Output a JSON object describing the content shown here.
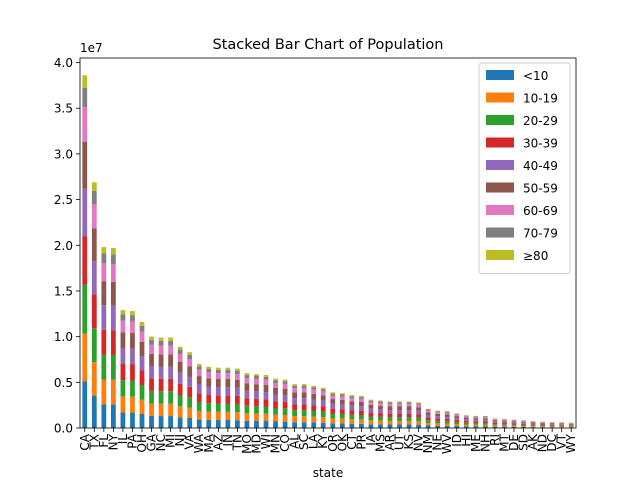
{
  "chart_data": {
    "type": "bar",
    "stacked": true,
    "title": "Stacked Bar Chart of Population",
    "xlabel": "state",
    "ylabel": "",
    "offset_label": "1e7",
    "ylim": [
      0,
      40500000
    ],
    "yticks": [
      0,
      5000000,
      10000000,
      15000000,
      20000000,
      25000000,
      30000000,
      35000000,
      40000000
    ],
    "ytick_labels": [
      "0.0",
      "0.5",
      "1.0",
      "1.5",
      "2.0",
      "2.5",
      "3.0",
      "3.5",
      "4.0"
    ],
    "legend_position": "top-right",
    "categories": [
      "CA",
      "TX",
      "FL",
      "NY",
      "IL",
      "PA",
      "OH",
      "GA",
      "NC",
      "MI",
      "NJ",
      "VA",
      "WA",
      "MA",
      "AZ",
      "IN",
      "TN",
      "MO",
      "MD",
      "WI",
      "MN",
      "CO",
      "AL",
      "SC",
      "LA",
      "KY",
      "OR",
      "OK",
      "CT",
      "PR",
      "IA",
      "MS",
      "AR",
      "UT",
      "KS",
      "NV",
      "NM",
      "NE",
      "WV",
      "ID",
      "HI",
      "ME",
      "NH",
      "RI",
      "MT",
      "DE",
      "SD",
      "AK",
      "ND",
      "DC",
      "VT",
      "WY"
    ],
    "totals": [
      38600000,
      26900000,
      19800000,
      19700000,
      12900000,
      12800000,
      11600000,
      10000000,
      9900000,
      9900000,
      8900000,
      8300000,
      7000000,
      6700000,
      6600000,
      6600000,
      6500000,
      6000000,
      5900000,
      5800000,
      5400000,
      5300000,
      4800000,
      4800000,
      4600000,
      4400000,
      3900000,
      3800000,
      3600000,
      3500000,
      3100000,
      3000000,
      2900000,
      2900000,
      2900000,
      2800000,
      2100000,
      1900000,
      1850000,
      1600000,
      1400000,
      1330000,
      1320000,
      1050000,
      1000000,
      920000,
      840000,
      740000,
      700000,
      650000,
      630000,
      580000
    ],
    "series": [
      {
        "name": "<10",
        "color": "#1f77b4",
        "share": 0.132
      },
      {
        "name": "10-19",
        "color": "#ff7f0e",
        "share": 0.136
      },
      {
        "name": "20-29",
        "color": "#2ca02c",
        "share": 0.138
      },
      {
        "name": "30-39",
        "color": "#d62728",
        "share": 0.137
      },
      {
        "name": "40-49",
        "color": "#9467bd",
        "share": 0.136
      },
      {
        "name": "50-59",
        "color": "#8c564b",
        "share": 0.133
      },
      {
        "name": "60-69",
        "color": "#e377c2",
        "share": 0.098
      },
      {
        "name": "70-79",
        "color": "#7f7f7f",
        "share": 0.055
      },
      {
        "name": "≥80",
        "color": "#bcbd22",
        "share": 0.035
      }
    ]
  }
}
